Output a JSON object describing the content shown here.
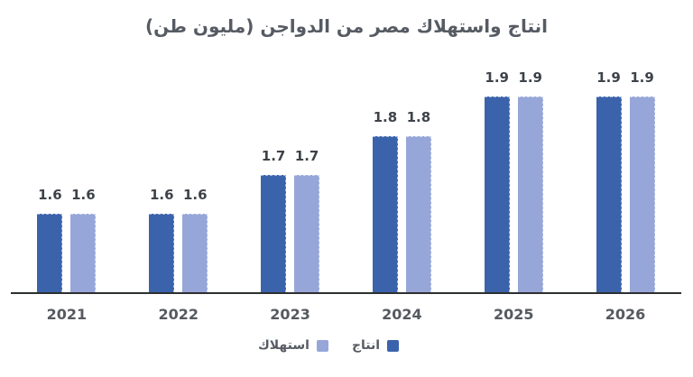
{
  "chart_data": {
    "type": "bar",
    "title": "انتاج واستهلاك مصر من الدواجن (مليون طن)",
    "categories": [
      "2021",
      "2022",
      "2023",
      "2024",
      "2025",
      "2026"
    ],
    "series": [
      {
        "name": "انتاج",
        "color": "#3B63AC",
        "values": [
          1.6,
          1.6,
          1.7,
          1.8,
          1.9,
          1.9
        ]
      },
      {
        "name": "استهلاك",
        "color": "#97A6D8",
        "values": [
          1.6,
          1.6,
          1.7,
          1.8,
          1.9,
          1.9
        ]
      }
    ],
    "xlabel": "",
    "ylabel": "",
    "ylim": [
      1.4,
      2.0
    ],
    "grid": false,
    "value_labels": true,
    "legend_position": "bottom"
  },
  "colors": {
    "background": "#FFFFFF",
    "title_text": "#565B63",
    "value_label_text": "#3E434A",
    "tick_label_text": "#56595F",
    "axis_line": "#2E2F31"
  }
}
